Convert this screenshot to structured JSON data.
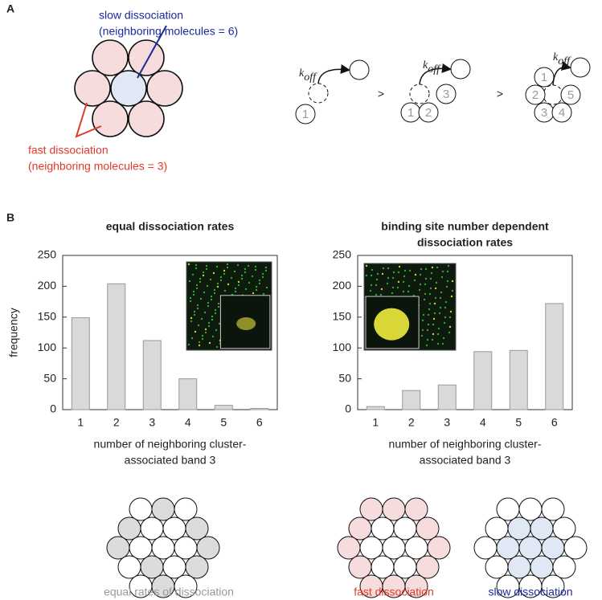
{
  "panel_labels": [
    "A",
    "B"
  ],
  "panel_a": {
    "slow_label": [
      "slow dissociation",
      "(neighboring molecules = 6)"
    ],
    "fast_label": [
      "fast dissociation",
      "(neighboring molecules = 3)"
    ],
    "koff": {
      "k": "k",
      "sub": "off"
    },
    "separator": ">",
    "diagrams": [
      [
        "1"
      ],
      [
        "1",
        "2",
        "3"
      ],
      [
        "1",
        "2",
        "3",
        "4",
        "5"
      ]
    ]
  },
  "chart_data": [
    {
      "type": "bar",
      "title": [
        "equal dissociation rates"
      ],
      "categories": [
        "1",
        "2",
        "3",
        "4",
        "5",
        "6"
      ],
      "values": [
        149,
        204,
        112,
        50,
        7,
        2
      ],
      "color": "#d9d9d9",
      "ylim": [
        0,
        250
      ],
      "yticks": [
        0,
        50,
        100,
        150,
        200,
        250
      ],
      "x_label": [
        "number of neighboring cluster-",
        "associated band 3"
      ],
      "y_label": "frequency"
    },
    {
      "type": "bar",
      "title": [
        "binding site number dependent",
        "dissociation rates"
      ],
      "categories": [
        "1",
        "2",
        "3",
        "4",
        "5",
        "6"
      ],
      "values": [
        5,
        31,
        40,
        94,
        96,
        172
      ],
      "color": "#d9d9d9",
      "ylim": [
        0,
        250
      ],
      "yticks": [
        0,
        50,
        100,
        150,
        200,
        250
      ],
      "x_label": [
        "number of neighboring cluster-",
        "associated band 3"
      ]
    }
  ],
  "bottom_labels": [
    "equal rates of dissociation",
    "fast dissociation",
    "slow dissociation"
  ]
}
